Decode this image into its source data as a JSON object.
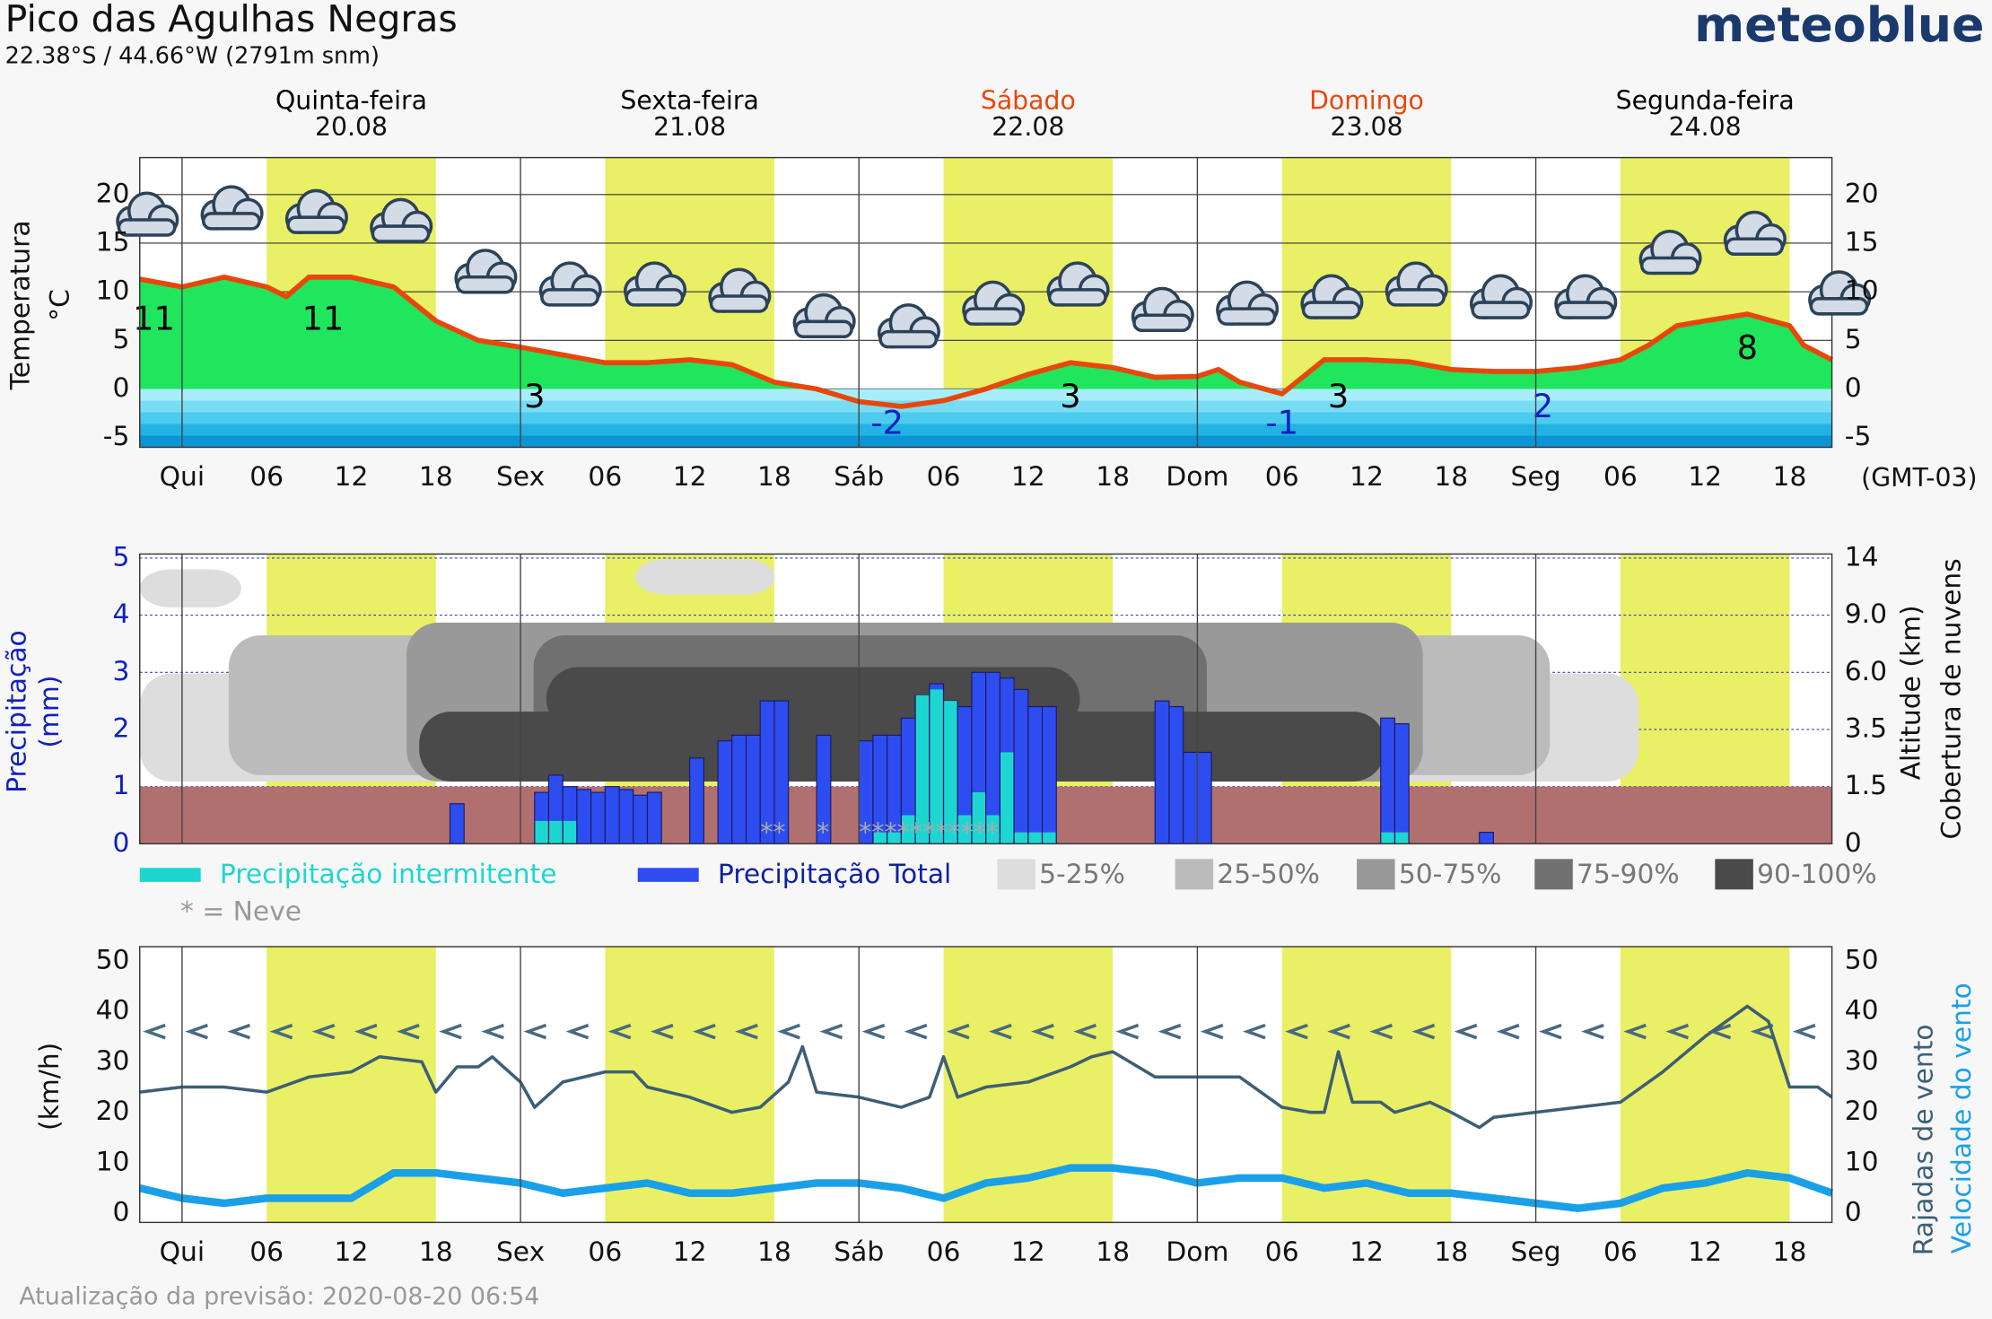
{
  "title": "Pico das Agulhas Negras",
  "subtitle": "22.38°S / 44.66°W (2791m snm)",
  "brand": "meteoblue",
  "footer": "Atualização da previsão: 2020-08-20 06:54",
  "timezone": "(GMT-03)",
  "days": [
    {
      "name": "Quinta-feira",
      "date": "20.08",
      "x": 12,
      "color": "#000000"
    },
    {
      "name": "Sexta-feira",
      "date": "21.08",
      "x": 36,
      "color": "#000000"
    },
    {
      "name": "Sábado",
      "date": "22.08",
      "x": 60,
      "color": "#e8470c"
    },
    {
      "name": "Domingo",
      "date": "23.08",
      "x": 84,
      "color": "#e8470c"
    },
    {
      "name": "Segunda-feira",
      "date": "24.08",
      "x": 108,
      "color": "#000000"
    }
  ],
  "chart_data": [
    {
      "type": "line",
      "fill": true,
      "ylabel": "Temperatura",
      "yunit": "°C",
      "color": "#e8470c",
      "grid": true,
      "xlim": [
        -3,
        117
      ],
      "ylim": [
        -6,
        23.8
      ],
      "yticks": [
        -5,
        0,
        5,
        10,
        15,
        20
      ],
      "xticks": [
        {
          "value": 0,
          "label": "Qui"
        },
        {
          "value": 6,
          "label": "06"
        },
        12,
        18,
        {
          "value": 24,
          "label": "Sex"
        },
        {
          "value": 30,
          "label": "06"
        },
        {
          "value": 36,
          "label": "12"
        },
        {
          "value": 42,
          "label": "18"
        },
        {
          "value": 48,
          "label": "Sáb"
        },
        {
          "value": 54,
          "label": "06"
        },
        {
          "value": 60,
          "label": "12"
        },
        {
          "value": 66,
          "label": "18"
        },
        {
          "value": 72,
          "label": "Dom"
        },
        {
          "value": 78,
          "label": "06"
        },
        {
          "value": 84,
          "label": "12"
        },
        {
          "value": 90,
          "label": "18"
        },
        {
          "value": 96,
          "label": "Seg"
        },
        {
          "value": 102,
          "label": "06"
        },
        {
          "value": 108,
          "label": "12"
        },
        {
          "value": 114,
          "label": "18"
        }
      ],
      "x": [
        -3,
        0,
        3,
        6,
        7.4,
        9,
        12,
        15,
        18,
        21,
        24,
        27,
        30,
        33,
        36,
        39,
        42,
        45,
        48,
        51,
        54,
        57,
        60,
        63,
        66,
        69,
        72,
        73.5,
        75,
        78,
        81,
        84,
        87,
        90,
        93,
        96,
        99,
        102,
        104,
        106,
        108,
        111,
        114,
        115,
        117
      ],
      "values": [
        11.3,
        10.5,
        11.5,
        10.5,
        9.5,
        11.5,
        11.5,
        10.5,
        7,
        5,
        4.3,
        3.5,
        2.7,
        2.7,
        3,
        2.5,
        0.7,
        0,
        -1.3,
        -1.8,
        -1.2,
        0,
        1.5,
        2.7,
        2.2,
        1.2,
        1.3,
        2,
        0.7,
        -0.5,
        3,
        3,
        2.8,
        2,
        1.8,
        1.8,
        2.2,
        3,
        4.5,
        6.5,
        7,
        7.7,
        6.5,
        4.5,
        3
      ],
      "annotations": [
        {
          "x": -2,
          "value": 11,
          "color": "#000000"
        },
        {
          "x": 10,
          "value": 11,
          "color": "#000000"
        },
        {
          "x": 25,
          "value": 3,
          "color": "#000000"
        },
        {
          "x": 50,
          "value": -2,
          "color": "#1020c0"
        },
        {
          "x": 63,
          "value": 3,
          "color": "#000000"
        },
        {
          "x": 78,
          "value": -1,
          "color": "#1020c0"
        },
        {
          "x": 82,
          "value": 3,
          "color": "#000000"
        },
        {
          "x": 96.5,
          "value": 2,
          "color": "#1020c0"
        },
        {
          "x": 111,
          "value": 8,
          "color": "#000000"
        }
      ]
    },
    {
      "type": "bar",
      "ylabel": "Precipitação",
      "yunit": "(mm)",
      "y2label": "Altitude (km)",
      "y2title": "Cobertura de nuvens",
      "grid": true,
      "xlim": [
        -3,
        117
      ],
      "ylim": [
        0,
        5.07
      ],
      "yticks": [
        0,
        1,
        2,
        3,
        4,
        5
      ],
      "y2ticks": [
        0,
        1.5,
        3.5,
        {
          "value": 6,
          "label": "6.0"
        },
        {
          "value": 9,
          "label": "9.0"
        },
        14
      ],
      "x": [
        19,
        25,
        26,
        27,
        28,
        29,
        30,
        31,
        32,
        33,
        36,
        38,
        39,
        40,
        41,
        42,
        45,
        48,
        49,
        50,
        51,
        52,
        53,
        54,
        55,
        56,
        57,
        58,
        59,
        60,
        61,
        69,
        70,
        71,
        72,
        85,
        86,
        92
      ],
      "series": [
        {
          "name": "Precipitação Total",
          "color": "#2d4df0",
          "values": [
            0.7,
            0.9,
            1.2,
            1.0,
            0.95,
            0.9,
            1.0,
            0.95,
            0.85,
            0.9,
            1.5,
            1.8,
            1.9,
            1.9,
            2.5,
            2.5,
            1.9,
            1.8,
            1.9,
            1.9,
            2.2,
            2.6,
            2.8,
            2.5,
            2.4,
            3.0,
            3.0,
            2.9,
            2.7,
            2.4,
            2.4,
            2.5,
            2.4,
            1.6,
            1.6,
            2.2,
            2.1,
            0.2
          ]
        },
        {
          "name": "Precipitação intermitente",
          "color": "#1ed6d0",
          "values": [
            0,
            0.4,
            0.4,
            0.4,
            0,
            0,
            0,
            0,
            0,
            0,
            0,
            0,
            0,
            0,
            0,
            0,
            0,
            0,
            0.2,
            0.2,
            0.5,
            2.6,
            2.7,
            2.5,
            0.5,
            0.9,
            0.5,
            1.6,
            0.2,
            0.2,
            0.2,
            0,
            0,
            0,
            0,
            0.2,
            0.2,
            0
          ]
        }
      ],
      "snow": [
        {
          "x": 41,
          "text": "**"
        },
        {
          "x": 45,
          "text": "*"
        },
        {
          "x": 48,
          "text": "***********"
        }
      ],
      "snow_legend": "* = Neve",
      "cloud_levels": [
        {
          "label": "5-25%",
          "color": "#dddddd"
        },
        {
          "label": "25-50%",
          "color": "#bbbbbb"
        },
        {
          "label": "50-75%",
          "color": "#999999"
        },
        {
          "label": "75-90%",
          "color": "#707070"
        },
        {
          "label": "90-100%",
          "color": "#4a4a4a"
        }
      ]
    },
    {
      "type": "line",
      "ylabel": "(km/h)",
      "grid": false,
      "xlim": [
        -3,
        117
      ],
      "ylim": [
        -1.8,
        52.8
      ],
      "yticks": [
        0,
        10,
        20,
        30,
        40,
        50
      ],
      "xticks": [
        {
          "value": 0,
          "label": "Qui"
        },
        {
          "value": 6,
          "label": "06"
        },
        12,
        18,
        {
          "value": 24,
          "label": "Sex"
        },
        {
          "value": 30,
          "label": "06"
        },
        {
          "value": 36,
          "label": "12"
        },
        {
          "value": 42,
          "label": "18"
        },
        {
          "value": 48,
          "label": "Sáb"
        },
        {
          "value": 54,
          "label": "06"
        },
        {
          "value": 60,
          "label": "12"
        },
        {
          "value": 66,
          "label": "18"
        },
        {
          "value": 72,
          "label": "Dom"
        },
        {
          "value": 78,
          "label": "06"
        },
        {
          "value": 84,
          "label": "12"
        },
        {
          "value": 90,
          "label": "18"
        },
        {
          "value": 96,
          "label": "Seg"
        },
        {
          "value": 102,
          "label": "06"
        },
        {
          "value": 108,
          "label": "12"
        },
        {
          "value": 114,
          "label": "18"
        }
      ],
      "series": [
        {
          "name": "Rajadas de vento",
          "color": "#3d5f75",
          "width": 2.5,
          "x": [
            -3,
            0,
            3,
            6,
            9,
            12,
            14,
            17,
            18,
            19.5,
            21,
            22,
            24,
            25,
            27,
            30,
            32,
            33,
            36,
            39,
            41,
            43,
            44,
            45,
            48,
            51,
            53,
            54,
            55,
            57,
            60,
            63,
            64.5,
            66,
            69,
            72,
            75,
            78,
            80,
            81,
            82,
            83,
            85,
            86,
            88.5,
            90,
            92,
            93,
            96,
            99,
            102,
            105,
            108,
            111,
            112.5,
            114,
            116,
            117
          ],
          "values": [
            24,
            25,
            25,
            24,
            27,
            28,
            31,
            30,
            24,
            29,
            29,
            31,
            26,
            21,
            26,
            28,
            28,
            25,
            23,
            20,
            21,
            26,
            33,
            24,
            23,
            21,
            23,
            31,
            23,
            25,
            26,
            29,
            31,
            32,
            27,
            27,
            27,
            21,
            20,
            20,
            32,
            22,
            22,
            20,
            22,
            20,
            17,
            19,
            20,
            21,
            22,
            28,
            35,
            41,
            38,
            25,
            25,
            23
          ]
        },
        {
          "name": "Velocidade do vento",
          "color": "#1aa0e8",
          "width": 6,
          "x": [
            -3,
            0,
            3,
            6,
            9,
            12,
            15,
            18,
            21,
            24,
            27,
            30,
            33,
            36,
            39,
            42,
            45,
            48,
            51,
            54,
            57,
            60,
            63,
            66,
            69,
            72,
            75,
            78,
            81,
            84,
            87,
            90,
            93,
            96,
            99,
            102,
            105,
            108,
            111,
            114,
            117
          ],
          "values": [
            5,
            3,
            2,
            3,
            3,
            3,
            8,
            8,
            7,
            6,
            4,
            5,
            6,
            4,
            4,
            5,
            6,
            6,
            5,
            3,
            6,
            7,
            9,
            9,
            8,
            6,
            7,
            7,
            5,
            6,
            4,
            4,
            3,
            2,
            1,
            2,
            5,
            6,
            8,
            7,
            4
          ]
        }
      ]
    }
  ]
}
